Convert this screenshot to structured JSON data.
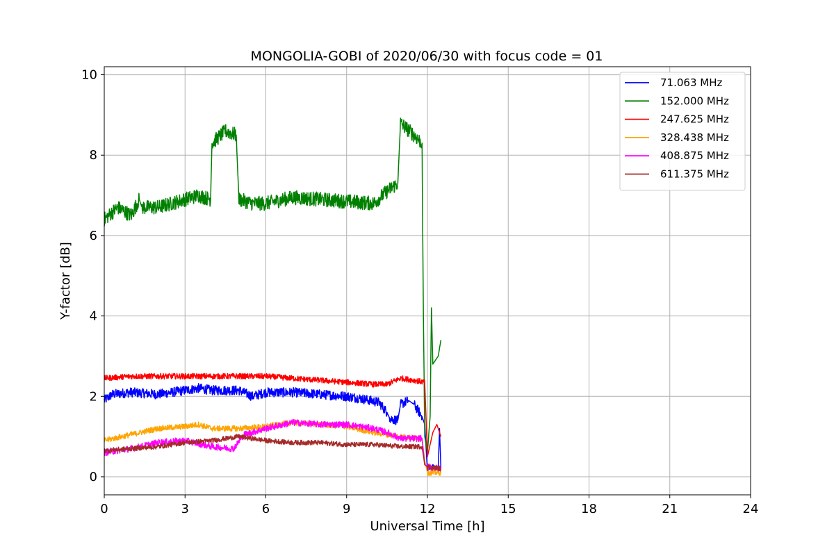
{
  "chart_data": {
    "type": "line",
    "title": "MONGOLIA-GOBI of 2020/06/30 with focus code = 01",
    "xlabel": "Universal Time [h]",
    "ylabel": "Y-factor [dB]",
    "xlim": [
      0,
      24
    ],
    "ylim": [
      -0.45,
      10.2
    ],
    "xticks": [
      0,
      3,
      6,
      9,
      12,
      15,
      18,
      21,
      24
    ],
    "yticks": [
      0,
      2,
      4,
      6,
      8,
      10
    ],
    "grid": true,
    "legend_position": "top-right",
    "series": [
      {
        "name": " 71.063 MHz",
        "color": "#0000ff",
        "noise": 0.12,
        "x": [
          0,
          0.3,
          1,
          2,
          3,
          3.5,
          4,
          5,
          5.5,
          6,
          7,
          8,
          9,
          9.5,
          10.2,
          10.5,
          10.6,
          10.9,
          11,
          11.3,
          11.5,
          11.8,
          11.9,
          12.0,
          12.1,
          12.2,
          12.3,
          12.4,
          12.45,
          12.5
        ],
        "y": [
          1.9,
          2.05,
          2.1,
          2.05,
          2.15,
          2.2,
          2.15,
          2.15,
          2.0,
          2.1,
          2.1,
          2.05,
          2.0,
          1.95,
          1.85,
          1.6,
          1.45,
          1.4,
          1.8,
          1.9,
          1.8,
          1.5,
          1.3,
          0.15,
          0.2,
          0.3,
          0.25,
          0.2,
          1.2,
          0.2
        ]
      },
      {
        "name": "152.000 MHz",
        "color": "#008000",
        "noise": 0.18,
        "x": [
          0,
          0.5,
          1,
          1.3,
          1.4,
          2,
          2.5,
          3,
          3.5,
          3.95,
          4.0,
          4.5,
          4.9,
          5.0,
          5.5,
          6,
          7,
          8,
          9,
          10,
          10.5,
          10.9,
          11.0,
          11.5,
          11.8,
          11.85,
          11.9,
          12.0,
          12.1,
          12.15,
          12.2,
          12.3,
          12.4,
          12.5
        ],
        "y": [
          6.4,
          6.7,
          6.5,
          6.9,
          6.7,
          6.7,
          6.8,
          6.9,
          7.0,
          6.9,
          8.3,
          8.6,
          8.5,
          6.9,
          6.8,
          6.8,
          6.95,
          6.9,
          6.85,
          6.8,
          7.1,
          7.3,
          8.8,
          8.5,
          8.3,
          4.0,
          1.0,
          0.6,
          1.5,
          4.2,
          2.8,
          2.9,
          3.0,
          3.4
        ]
      },
      {
        "name": "247.625 MHz",
        "color": "#ff0000",
        "noise": 0.07,
        "x": [
          0,
          1,
          2,
          3,
          4,
          5,
          6,
          7,
          8,
          9,
          10,
          10.5,
          11,
          11.5,
          11.9,
          12.0,
          12.2,
          12.35,
          12.5
        ],
        "y": [
          2.45,
          2.5,
          2.5,
          2.5,
          2.5,
          2.5,
          2.5,
          2.45,
          2.4,
          2.35,
          2.3,
          2.3,
          2.45,
          2.4,
          2.35,
          0.5,
          1.1,
          1.3,
          1.0
        ]
      },
      {
        "name": "328.438 MHz",
        "color": "#ffa500",
        "noise": 0.07,
        "x": [
          0,
          1,
          2,
          3,
          3.5,
          4,
          5,
          6,
          7,
          8,
          9,
          10,
          11,
          11.8,
          11.9,
          12.0,
          12.5
        ],
        "y": [
          0.9,
          1.05,
          1.2,
          1.25,
          1.3,
          1.2,
          1.2,
          1.25,
          1.35,
          1.3,
          1.25,
          1.1,
          1.0,
          0.95,
          0.4,
          0.1,
          0.1
        ]
      },
      {
        "name": "408.875 MHz",
        "color": "#ff00ff",
        "noise": 0.08,
        "x": [
          0,
          1,
          2,
          3,
          4,
          4.8,
          5.2,
          6,
          7,
          8,
          9,
          10,
          10.5,
          11,
          11.8,
          11.9,
          12.0,
          12.5
        ],
        "y": [
          0.6,
          0.7,
          0.85,
          0.9,
          0.75,
          0.7,
          1.05,
          1.2,
          1.35,
          1.3,
          1.3,
          1.2,
          1.1,
          0.95,
          0.95,
          0.3,
          0.25,
          0.2
        ]
      },
      {
        "name": "611.375 MHz",
        "color": "#a52a2a",
        "noise": 0.06,
        "x": [
          0,
          1,
          2,
          3,
          4,
          5,
          5.5,
          6,
          7,
          8,
          9,
          10,
          11,
          11.8,
          11.9,
          12.0,
          12.5
        ],
        "y": [
          0.65,
          0.7,
          0.75,
          0.85,
          0.9,
          1.0,
          0.95,
          0.9,
          0.85,
          0.85,
          0.8,
          0.8,
          0.75,
          0.75,
          0.3,
          0.25,
          0.2
        ]
      }
    ]
  }
}
